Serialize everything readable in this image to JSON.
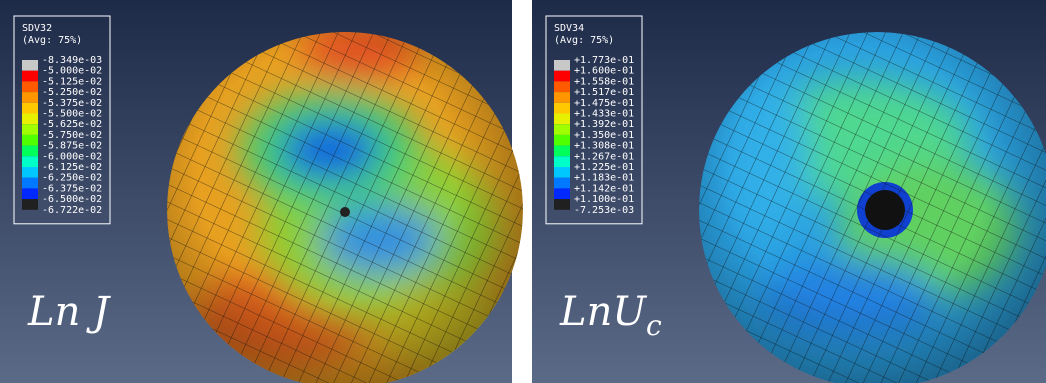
{
  "panels": [
    {
      "legend": {
        "title": "SDV32",
        "subtitle": "(Avg: 75%)",
        "labels": [
          "-8.349e-03",
          "-5.000e-02",
          "-5.125e-02",
          "-5.250e-02",
          "-5.375e-02",
          "-5.500e-02",
          "-5.625e-02",
          "-5.750e-02",
          "-5.875e-02",
          "-6.000e-02",
          "-6.125e-02",
          "-6.250e-02",
          "-6.375e-02",
          "-6.500e-02",
          "-6.722e-02"
        ],
        "colors": [
          "#c8c8c8",
          "#ff0000",
          "#ff5a00",
          "#ff9600",
          "#ffc800",
          "#e6f000",
          "#a0ff00",
          "#50ff00",
          "#00ff5a",
          "#00ffc8",
          "#00c8ff",
          "#0078ff",
          "#0028ff",
          "#202020"
        ]
      },
      "label": {
        "main": "Ln J"
      }
    },
    {
      "legend": {
        "title": "SDV34",
        "subtitle": "(Avg: 75%)",
        "labels": [
          "+1.773e-01",
          "+1.600e-01",
          "+1.558e-01",
          "+1.517e-01",
          "+1.475e-01",
          "+1.433e-01",
          "+1.392e-01",
          "+1.350e-01",
          "+1.308e-01",
          "+1.267e-01",
          "+1.225e-01",
          "+1.183e-01",
          "+1.142e-01",
          "+1.100e-01",
          "-7.253e-03"
        ],
        "colors": [
          "#c8c8c8",
          "#ff0000",
          "#ff5a00",
          "#ff9600",
          "#ffc800",
          "#e6f000",
          "#a0ff00",
          "#50ff00",
          "#00ff5a",
          "#00ffc8",
          "#00c8ff",
          "#0078ff",
          "#0028ff",
          "#202020"
        ]
      },
      "label": {
        "main": "LnU",
        "sub": "c"
      }
    }
  ]
}
